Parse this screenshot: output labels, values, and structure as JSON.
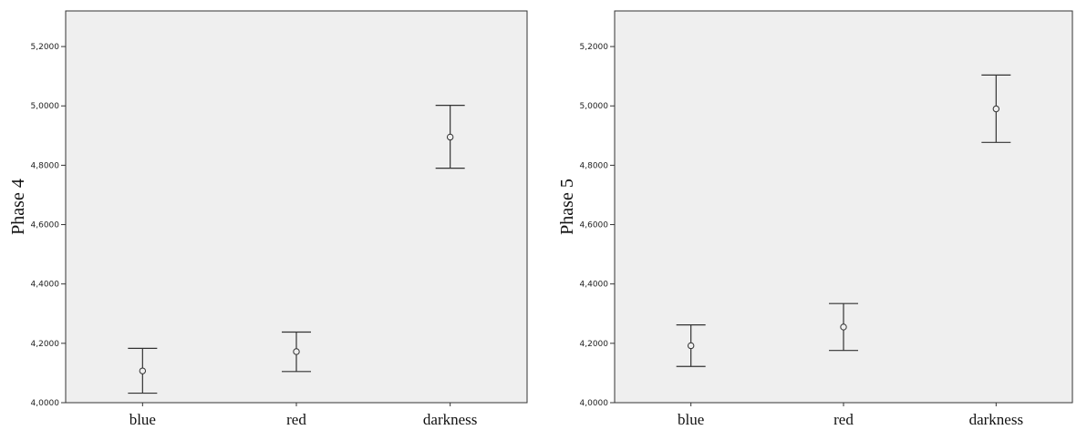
{
  "chart_data": [
    {
      "type": "errorbar",
      "ylabel": "Phase 4",
      "xlabel": "",
      "categories": [
        "blue",
        "red",
        "darkness"
      ],
      "ylim": [
        4.0,
        5.32
      ],
      "yticks": [
        "4,0000",
        "4,2000",
        "4,4000",
        "4,6000",
        "4,8000",
        "5,0000",
        "5,2000"
      ],
      "ytick_values": [
        4.0,
        4.2,
        4.4,
        4.6,
        4.8,
        5.0,
        5.2
      ],
      "series": [
        {
          "mean": [
            4.107,
            4.172,
            4.895
          ],
          "lower": [
            4.032,
            4.105,
            4.79
          ],
          "upper": [
            4.183,
            4.238,
            5.002
          ]
        }
      ],
      "grid": false,
      "background": "#efefef"
    },
    {
      "type": "errorbar",
      "ylabel": "Phase 5",
      "xlabel": "",
      "categories": [
        "blue",
        "red",
        "darkness"
      ],
      "ylim": [
        4.0,
        5.32
      ],
      "yticks": [
        "4,0000",
        "4,2000",
        "4,4000",
        "4,6000",
        "4,8000",
        "5,0000",
        "5,2000"
      ],
      "ytick_values": [
        4.0,
        4.2,
        4.4,
        4.6,
        4.8,
        5.0,
        5.2
      ],
      "series": [
        {
          "mean": [
            4.192,
            4.255,
            4.99
          ],
          "lower": [
            4.122,
            4.176,
            4.877
          ],
          "upper": [
            4.262,
            4.334,
            5.104
          ]
        }
      ],
      "grid": false,
      "background": "#efefef"
    }
  ],
  "colors": {
    "plot_bg": "#efefef",
    "axis": "#333333",
    "marks": "#333333"
  }
}
